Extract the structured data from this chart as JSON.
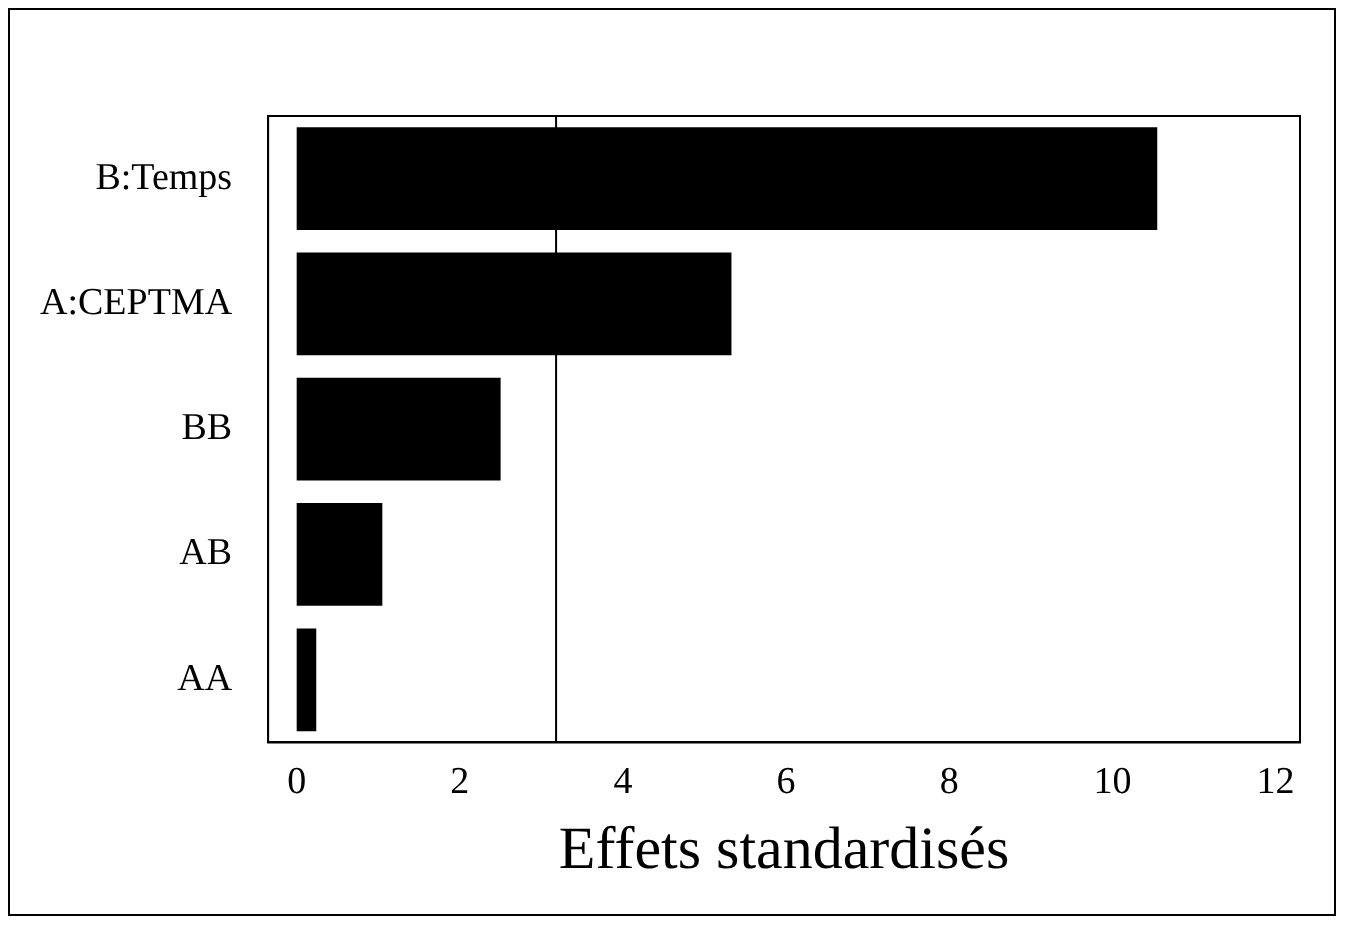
{
  "chart_data": {
    "type": "bar",
    "orientation": "horizontal",
    "xlabel": "Effets standardisés",
    "categories": [
      "B:Temps",
      "A:CEPTMA",
      "BB",
      "AB",
      "AA"
    ],
    "values": [
      10.55,
      5.33,
      2.5,
      1.05,
      0.24
    ],
    "color": "#000000",
    "xlim": [
      -0.35,
      12.3
    ],
    "xticks": [
      0,
      2,
      4,
      6,
      8,
      10,
      12
    ],
    "ref_lines": [
      {
        "axis": "x",
        "value": 3.18,
        "color": "#000000"
      }
    ],
    "grid": false,
    "legend": false
  }
}
